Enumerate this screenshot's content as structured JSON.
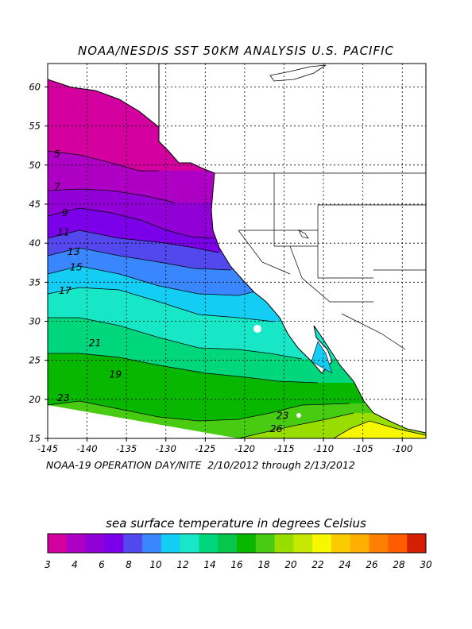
{
  "title": "NOAA/NESDIS SST 50KM ANALYSIS U.S. PACIFIC",
  "subtitle": "NOAA-19 OPERATION DAY/NITE  2/10/2012 through 2/13/2012",
  "legend_title": "sea surface temperature in degrees Celsius",
  "map": {
    "lon_range": [
      -145,
      -97
    ],
    "lat_range": [
      15,
      63
    ],
    "lon_ticks": [
      "-145",
      "-140",
      "-135",
      "-130",
      "-125",
      "-120",
      "-115",
      "-110",
      "-105",
      "-100"
    ],
    "lat_ticks": [
      "15",
      "20",
      "25",
      "30",
      "35",
      "40",
      "45",
      "50",
      "55",
      "60"
    ],
    "grid": "dotted",
    "contour_labels": [
      {
        "text": "5",
        "lon": -144.2,
        "lat": 51.0
      },
      {
        "text": "7",
        "lon": -144.2,
        "lat": 46.8
      },
      {
        "text": "9",
        "lon": -143.2,
        "lat": 43.5
      },
      {
        "text": "11",
        "lon": -143.8,
        "lat": 41.0
      },
      {
        "text": "13",
        "lon": -142.5,
        "lat": 38.5
      },
      {
        "text": "15",
        "lon": -142.2,
        "lat": 36.5
      },
      {
        "text": "17",
        "lon": -143.6,
        "lat": 33.5
      },
      {
        "text": "19",
        "lon": -137.2,
        "lat": 22.8
      },
      {
        "text": "21",
        "lon": -139.8,
        "lat": 26.8
      },
      {
        "text": "23",
        "lon": -143.8,
        "lat": 19.8
      },
      {
        "text": "23",
        "lon": -116.0,
        "lat": 17.5
      },
      {
        "text": "26",
        "lon": -116.8,
        "lat": 15.8
      }
    ]
  },
  "legend": {
    "colors": [
      "#d3009f",
      "#ae00c4",
      "#9200d8",
      "#7b00e9",
      "#5347ee",
      "#3a86ff",
      "#14cdf4",
      "#17e7c7",
      "#00d77d",
      "#08c54c",
      "#07b700",
      "#48cc12",
      "#98dc00",
      "#c7e800",
      "#f7f700",
      "#fbcb00",
      "#ffaf00",
      "#ff7f00",
      "#ff5b00",
      "#d61e00"
    ],
    "tick_labels": [
      "3",
      "4",
      "6",
      "8",
      "10",
      "12",
      "14",
      "16",
      "18",
      "20",
      "22",
      "24",
      "26",
      "28",
      "30"
    ]
  }
}
